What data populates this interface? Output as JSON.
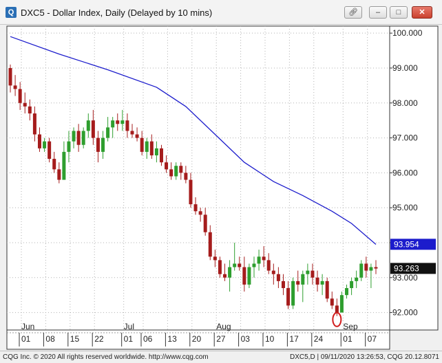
{
  "window": {
    "title": "DXC5 - Dollar Index, Daily (Delayed by 10 mins)",
    "app_icon": "Q",
    "buttons": [
      "link-icon",
      "minimize-icon",
      "maximize-icon",
      "close-icon"
    ]
  },
  "footer": {
    "copyright": "CQG Inc. © 2020 All rights reserved worldwide. http://www.cqg.com",
    "status": "DXC5,D | 09/11/2020 13:26:53, CQG 20.12.8071"
  },
  "colors": {
    "up": "#2e9e2e",
    "down": "#a51c1c",
    "ma": "#1c1ccc",
    "badge_blue": "#1c1ccc",
    "badge_black": "#111111",
    "annotation": "#d11c1c"
  },
  "chart_data": {
    "type": "candlestick",
    "ylim": [
      91.5,
      100.2
    ],
    "y_ticks": [
      "100.000",
      "99.000",
      "98.000",
      "97.000",
      "96.000",
      "95.000",
      "94.000",
      "93.000",
      "92.000"
    ],
    "y_tick_values": [
      100,
      99,
      98,
      97,
      96,
      95,
      94,
      93,
      92
    ],
    "months": [
      "Jun",
      "Jul",
      "Aug",
      "Sep"
    ],
    "x_ticks": [
      "01",
      "08",
      "15",
      "22",
      "01",
      "06",
      "13",
      "20",
      "27",
      "03",
      "10",
      "17",
      "24",
      "01",
      "07"
    ],
    "badges": [
      {
        "label": "93.954",
        "value": 93.954,
        "style": "blue"
      },
      {
        "label": "93.263",
        "value": 93.263,
        "style": "black"
      }
    ],
    "candles": [
      {
        "o": 99.0,
        "h": 99.1,
        "l": 98.3,
        "c": 98.5
      },
      {
        "o": 98.5,
        "h": 98.8,
        "l": 98.2,
        "c": 98.4
      },
      {
        "o": 98.4,
        "h": 98.6,
        "l": 97.8,
        "c": 98.0
      },
      {
        "o": 98.0,
        "h": 98.3,
        "l": 97.7,
        "c": 97.9
      },
      {
        "o": 97.9,
        "h": 98.1,
        "l": 97.5,
        "c": 97.7
      },
      {
        "o": 97.7,
        "h": 97.9,
        "l": 96.9,
        "c": 97.1
      },
      {
        "o": 97.1,
        "h": 97.3,
        "l": 96.6,
        "c": 96.7
      },
      {
        "o": 96.7,
        "h": 97.0,
        "l": 96.6,
        "c": 96.9
      },
      {
        "o": 96.9,
        "h": 97.0,
        "l": 96.3,
        "c": 96.4
      },
      {
        "o": 96.4,
        "h": 96.6,
        "l": 96.0,
        "c": 96.1
      },
      {
        "o": 96.1,
        "h": 96.3,
        "l": 95.7,
        "c": 95.8
      },
      {
        "o": 95.8,
        "h": 96.9,
        "l": 95.8,
        "c": 96.6
      },
      {
        "o": 96.6,
        "h": 97.2,
        "l": 96.3,
        "c": 96.9
      },
      {
        "o": 96.9,
        "h": 97.3,
        "l": 96.7,
        "c": 97.2
      },
      {
        "o": 97.2,
        "h": 97.4,
        "l": 96.6,
        "c": 96.8
      },
      {
        "o": 96.8,
        "h": 97.3,
        "l": 96.7,
        "c": 97.2
      },
      {
        "o": 97.2,
        "h": 97.7,
        "l": 97.0,
        "c": 97.5
      },
      {
        "o": 97.5,
        "h": 97.8,
        "l": 96.8,
        "c": 97.0
      },
      {
        "o": 97.0,
        "h": 97.2,
        "l": 96.3,
        "c": 96.6
      },
      {
        "o": 96.6,
        "h": 97.2,
        "l": 96.4,
        "c": 97.0
      },
      {
        "o": 97.0,
        "h": 97.6,
        "l": 96.9,
        "c": 97.3
      },
      {
        "o": 97.3,
        "h": 97.6,
        "l": 97.0,
        "c": 97.5
      },
      {
        "o": 97.5,
        "h": 97.7,
        "l": 97.2,
        "c": 97.4
      },
      {
        "o": 97.4,
        "h": 97.8,
        "l": 97.2,
        "c": 97.5
      },
      {
        "o": 97.5,
        "h": 97.7,
        "l": 97.0,
        "c": 97.2
      },
      {
        "o": 97.2,
        "h": 97.4,
        "l": 97.0,
        "c": 97.1
      },
      {
        "o": 97.1,
        "h": 97.3,
        "l": 96.9,
        "c": 97.0
      },
      {
        "o": 97.0,
        "h": 97.2,
        "l": 96.5,
        "c": 96.6
      },
      {
        "o": 96.6,
        "h": 97.0,
        "l": 96.4,
        "c": 96.9
      },
      {
        "o": 96.9,
        "h": 97.1,
        "l": 96.4,
        "c": 96.5
      },
      {
        "o": 96.5,
        "h": 96.9,
        "l": 96.3,
        "c": 96.7
      },
      {
        "o": 96.7,
        "h": 96.8,
        "l": 96.2,
        "c": 96.3
      },
      {
        "o": 96.3,
        "h": 96.5,
        "l": 96.0,
        "c": 96.1
      },
      {
        "o": 96.1,
        "h": 96.3,
        "l": 95.8,
        "c": 95.9
      },
      {
        "o": 95.9,
        "h": 96.3,
        "l": 95.8,
        "c": 96.2
      },
      {
        "o": 96.2,
        "h": 96.3,
        "l": 95.8,
        "c": 96.0
      },
      {
        "o": 96.0,
        "h": 96.2,
        "l": 95.7,
        "c": 95.8
      },
      {
        "o": 95.8,
        "h": 96.0,
        "l": 95.0,
        "c": 95.1
      },
      {
        "o": 95.1,
        "h": 95.3,
        "l": 94.8,
        "c": 94.9
      },
      {
        "o": 94.9,
        "h": 95.0,
        "l": 94.6,
        "c": 94.8
      },
      {
        "o": 94.8,
        "h": 95.0,
        "l": 94.2,
        "c": 94.3
      },
      {
        "o": 94.3,
        "h": 94.5,
        "l": 93.5,
        "c": 93.6
      },
      {
        "o": 93.6,
        "h": 93.8,
        "l": 93.3,
        "c": 93.5
      },
      {
        "o": 93.5,
        "h": 93.6,
        "l": 93.0,
        "c": 93.1
      },
      {
        "o": 93.1,
        "h": 93.4,
        "l": 92.9,
        "c": 93.0
      },
      {
        "o": 93.0,
        "h": 93.5,
        "l": 92.6,
        "c": 93.3
      },
      {
        "o": 93.3,
        "h": 94.0,
        "l": 93.2,
        "c": 93.4
      },
      {
        "o": 93.4,
        "h": 93.6,
        "l": 93.2,
        "c": 93.3
      },
      {
        "o": 93.3,
        "h": 93.6,
        "l": 92.6,
        "c": 92.8
      },
      {
        "o": 92.8,
        "h": 93.4,
        "l": 92.7,
        "c": 93.3
      },
      {
        "o": 93.3,
        "h": 93.6,
        "l": 93.0,
        "c": 93.4
      },
      {
        "o": 93.4,
        "h": 93.8,
        "l": 93.2,
        "c": 93.6
      },
      {
        "o": 93.6,
        "h": 93.9,
        "l": 93.3,
        "c": 93.5
      },
      {
        "o": 93.5,
        "h": 93.7,
        "l": 93.1,
        "c": 93.2
      },
      {
        "o": 93.2,
        "h": 93.4,
        "l": 92.8,
        "c": 93.1
      },
      {
        "o": 93.1,
        "h": 93.3,
        "l": 92.7,
        "c": 92.9
      },
      {
        "o": 92.9,
        "h": 93.1,
        "l": 92.5,
        "c": 92.7
      },
      {
        "o": 92.7,
        "h": 92.9,
        "l": 92.1,
        "c": 92.2
      },
      {
        "o": 92.2,
        "h": 93.0,
        "l": 92.1,
        "c": 92.9
      },
      {
        "o": 92.9,
        "h": 93.2,
        "l": 92.6,
        "c": 92.8
      },
      {
        "o": 92.8,
        "h": 93.2,
        "l": 92.3,
        "c": 93.1
      },
      {
        "o": 93.1,
        "h": 93.4,
        "l": 92.8,
        "c": 93.2
      },
      {
        "o": 93.2,
        "h": 93.4,
        "l": 92.8,
        "c": 93.0
      },
      {
        "o": 93.0,
        "h": 93.2,
        "l": 92.6,
        "c": 92.8
      },
      {
        "o": 92.8,
        "h": 93.1,
        "l": 92.5,
        "c": 92.9
      },
      {
        "o": 92.9,
        "h": 93.0,
        "l": 92.3,
        "c": 92.4
      },
      {
        "o": 92.4,
        "h": 92.6,
        "l": 92.1,
        "c": 92.2
      },
      {
        "o": 92.2,
        "h": 92.4,
        "l": 91.9,
        "c": 92.0
      },
      {
        "o": 92.0,
        "h": 92.6,
        "l": 92.0,
        "c": 92.5
      },
      {
        "o": 92.5,
        "h": 92.8,
        "l": 92.4,
        "c": 92.7
      },
      {
        "o": 92.7,
        "h": 93.0,
        "l": 92.5,
        "c": 92.9
      },
      {
        "o": 92.9,
        "h": 93.2,
        "l": 92.7,
        "c": 93.0
      },
      {
        "o": 93.0,
        "h": 93.5,
        "l": 92.9,
        "c": 93.4
      },
      {
        "o": 93.4,
        "h": 93.6,
        "l": 93.0,
        "c": 93.2
      },
      {
        "o": 93.2,
        "h": 93.4,
        "l": 92.7,
        "c": 93.3
      },
      {
        "o": 93.3,
        "h": 93.5,
        "l": 93.1,
        "c": 93.26
      }
    ],
    "moving_average": [
      {
        "i": 0,
        "v": 99.9
      },
      {
        "i": 10,
        "v": 99.4
      },
      {
        "i": 20,
        "v": 98.95
      },
      {
        "i": 30,
        "v": 98.45
      },
      {
        "i": 36,
        "v": 97.9
      },
      {
        "i": 42,
        "v": 97.1
      },
      {
        "i": 48,
        "v": 96.3
      },
      {
        "i": 54,
        "v": 95.75
      },
      {
        "i": 60,
        "v": 95.35
      },
      {
        "i": 66,
        "v": 94.9
      },
      {
        "i": 70,
        "v": 94.55
      },
      {
        "i": 75,
        "v": 93.95
      }
    ],
    "annotation": {
      "type": "ellipse",
      "index": 67,
      "value": 91.8,
      "color": "red"
    }
  }
}
